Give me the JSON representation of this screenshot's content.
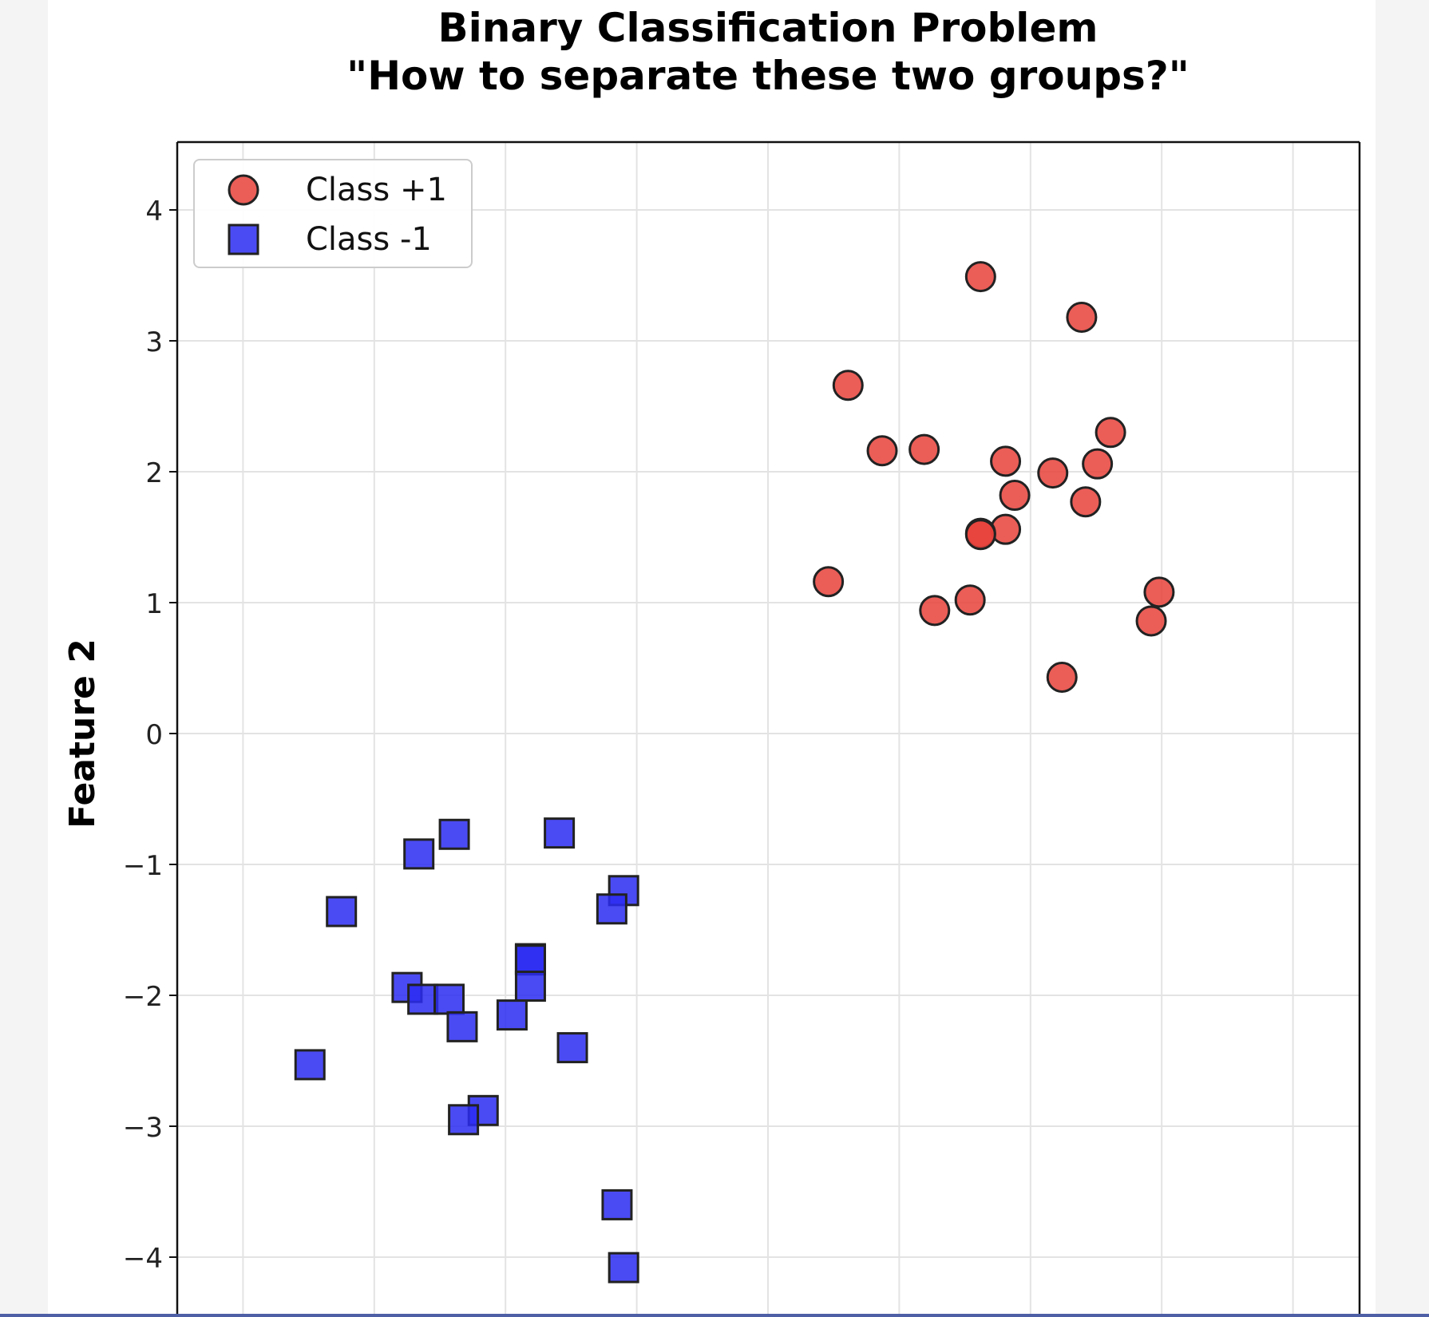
{
  "chart_data": {
    "type": "scatter",
    "title": "Binary Classification Problem",
    "subtitle": "\"How to separate these two groups?\"",
    "xlabel": "",
    "ylabel": "Feature 2",
    "xlim": [
      -4.5,
      4.5
    ],
    "ylim": [
      -4.5,
      4.5
    ],
    "x_gridlines": [
      -4,
      -3,
      -2,
      -1,
      0,
      1,
      2,
      3,
      4
    ],
    "yticks": [
      4,
      3,
      2,
      1,
      0,
      -1,
      -2,
      -3,
      -4
    ],
    "ytick_labels": [
      "4",
      "3",
      "2",
      "1",
      "0",
      "−1",
      "−2",
      "−3",
      "−4"
    ],
    "grid": true,
    "legend_position": "top-left",
    "series": [
      {
        "name": "Class +1",
        "marker": "circle",
        "color": "#e8413a",
        "edge_color": "#222222",
        "points": [
          [
            1.62,
            3.49
          ],
          [
            2.39,
            3.18
          ],
          [
            0.61,
            2.66
          ],
          [
            0.87,
            2.16
          ],
          [
            1.19,
            2.17
          ],
          [
            1.81,
            2.08
          ],
          [
            2.17,
            1.99
          ],
          [
            2.61,
            2.3
          ],
          [
            2.51,
            2.06
          ],
          [
            1.88,
            1.82
          ],
          [
            2.42,
            1.77
          ],
          [
            1.81,
            1.56
          ],
          [
            1.62,
            1.53
          ],
          [
            1.62,
            1.52
          ],
          [
            0.46,
            1.16
          ],
          [
            1.54,
            1.02
          ],
          [
            1.27,
            0.94
          ],
          [
            2.98,
            1.08
          ],
          [
            2.92,
            0.86
          ],
          [
            2.24,
            0.43
          ]
        ]
      },
      {
        "name": "Class -1",
        "marker": "square",
        "color": "#2b2bf2",
        "edge_color": "#222222",
        "points": [
          [
            -2.66,
            -0.92
          ],
          [
            -2.39,
            -0.77
          ],
          [
            -1.59,
            -0.76
          ],
          [
            -3.25,
            -1.36
          ],
          [
            -1.1,
            -1.2
          ],
          [
            -1.19,
            -1.34
          ],
          [
            -1.81,
            -1.72
          ],
          [
            -1.81,
            -1.73
          ],
          [
            -1.81,
            -1.93
          ],
          [
            -2.75,
            -1.94
          ],
          [
            -2.63,
            -2.03
          ],
          [
            -2.43,
            -2.03
          ],
          [
            -2.33,
            -2.24
          ],
          [
            -1.95,
            -2.15
          ],
          [
            -1.49,
            -2.4
          ],
          [
            -3.49,
            -2.53
          ],
          [
            -2.17,
            -2.88
          ],
          [
            -2.32,
            -2.95
          ],
          [
            -1.15,
            -3.6
          ],
          [
            -1.1,
            -4.08
          ]
        ]
      }
    ]
  },
  "colors": {
    "page_background": "#f4f4f4",
    "figure_background": "#ffffff",
    "grid": "#e3e3e3",
    "axis": "#111111",
    "bottom_bar": "#4e5fa6"
  }
}
